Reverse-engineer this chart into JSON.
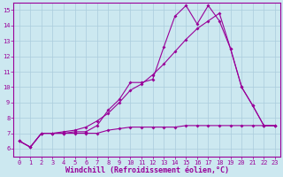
{
  "bg_color": "#cce8f0",
  "line_color": "#990099",
  "grid_color": "#aaccdd",
  "xlabel": "Windchill (Refroidissement éolien,°C)",
  "xlim": [
    -0.5,
    23.5
  ],
  "ylim": [
    5.5,
    15.5
  ],
  "yticks": [
    6,
    7,
    8,
    9,
    10,
    11,
    12,
    13,
    14,
    15
  ],
  "xticks": [
    0,
    1,
    2,
    3,
    4,
    5,
    6,
    7,
    8,
    9,
    10,
    11,
    12,
    13,
    14,
    15,
    16,
    17,
    18,
    19,
    20,
    21,
    22,
    23
  ],
  "line1_x": [
    0,
    1,
    2,
    3,
    4,
    5,
    6,
    7,
    8,
    9,
    10,
    11,
    12,
    13,
    14,
    15,
    16,
    17,
    18,
    19,
    20,
    21,
    22,
    23
  ],
  "line1_y": [
    6.5,
    6.1,
    7.0,
    7.0,
    7.0,
    7.1,
    7.1,
    7.5,
    8.5,
    9.2,
    10.3,
    10.3,
    10.5,
    12.6,
    14.6,
    15.3,
    14.1,
    15.3,
    14.3,
    12.5,
    10.0,
    8.8,
    7.5,
    7.5
  ],
  "line2_x": [
    0,
    1,
    2,
    3,
    4,
    5,
    6,
    7,
    8,
    9,
    10,
    11,
    12,
    13,
    14,
    15,
    16,
    17,
    18,
    19,
    20,
    21,
    22,
    23
  ],
  "line2_y": [
    6.5,
    6.1,
    7.0,
    7.0,
    7.1,
    7.2,
    7.4,
    7.8,
    8.3,
    9.0,
    9.8,
    10.2,
    10.8,
    11.5,
    12.3,
    13.1,
    13.8,
    14.3,
    14.8,
    12.5,
    10.0,
    8.8,
    7.5,
    7.5
  ],
  "line3_x": [
    0,
    1,
    2,
    3,
    4,
    5,
    6,
    7,
    8,
    9,
    10,
    11,
    12,
    13,
    14,
    15,
    16,
    17,
    18,
    19,
    20,
    21,
    22,
    23
  ],
  "line3_y": [
    6.5,
    6.1,
    7.0,
    7.0,
    7.0,
    7.0,
    7.0,
    7.0,
    7.2,
    7.3,
    7.4,
    7.4,
    7.4,
    7.4,
    7.4,
    7.5,
    7.5,
    7.5,
    7.5,
    7.5,
    7.5,
    7.5,
    7.5,
    7.5
  ],
  "marker": "D",
  "markersize": 2.0,
  "linewidth": 0.8,
  "tick_fontsize": 5.0,
  "xlabel_fontsize": 6.0
}
